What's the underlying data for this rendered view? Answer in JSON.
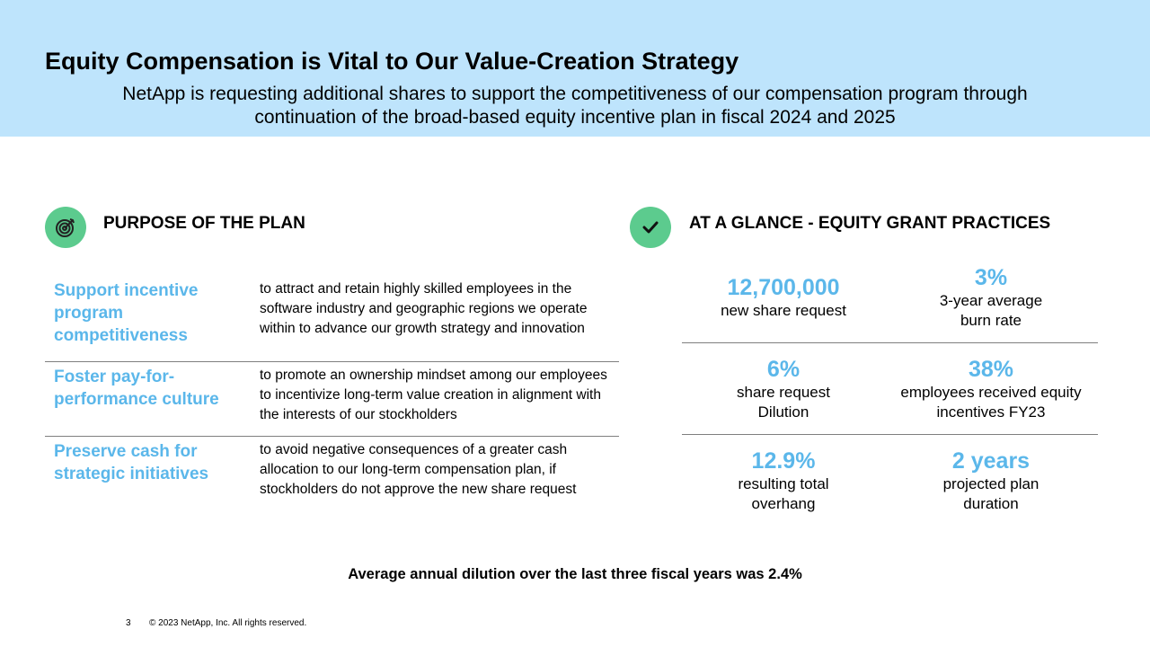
{
  "header": {
    "title": "Equity Compensation is Vital to Our Value-Creation Strategy",
    "subtitle": "NetApp is requesting additional shares to support the competitiveness of our compensation program through continuation of the broad-based equity incentive plan in fiscal 2024 and 2025"
  },
  "purpose": {
    "icon": "target-icon",
    "title": "PURPOSE OF THE PLAN",
    "rows": [
      {
        "label": "Support incentive program competitiveness",
        "text": "to attract and retain highly skilled employees in the software industry and geographic regions we operate within to advance our growth strategy and innovation"
      },
      {
        "label": "Foster pay-for-performance culture",
        "text": "to promote an ownership mindset among our employees to incentivize long-term value creation in alignment with the interests of our stockholders"
      },
      {
        "label": "Preserve cash for strategic initiatives",
        "text": "to avoid negative consequences of a greater cash allocation to our long-term compensation plan, if stockholders do not approve the new share request"
      }
    ]
  },
  "glance": {
    "icon": "checkmark-icon",
    "title": "AT A GLANCE - EQUITY GRANT PRACTICES",
    "stats": [
      {
        "value": "12,700,000",
        "label": "new share request"
      },
      {
        "value": "3%",
        "label": "3-year average burn rate"
      },
      {
        "value": "6%",
        "label": "share request Dilution"
      },
      {
        "value": "38%",
        "label": "employees received equity incentives FY23"
      },
      {
        "value": "12.9%",
        "label": "resulting total overhang"
      },
      {
        "value": "2 years",
        "label": "projected plan duration"
      }
    ]
  },
  "footnote": "Average annual dilution over the last three fiscal years was 2.4%",
  "footer": {
    "page": "3",
    "copyright": "© 2023 NetApp, Inc. All rights reserved."
  },
  "colors": {
    "header_bg": "#bee4fc",
    "accent_blue": "#5bb7ea",
    "icon_green": "#5ccb8e"
  }
}
